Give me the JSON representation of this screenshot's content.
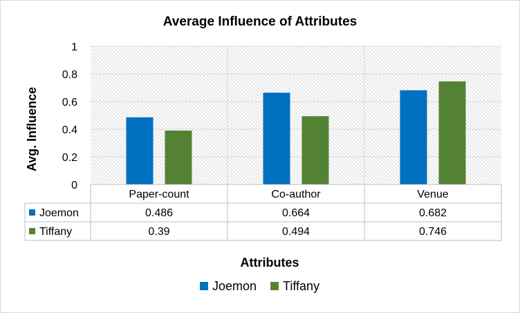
{
  "chart_data": {
    "type": "bar",
    "title": "Average Influence of Attributes",
    "xlabel": "Attributes",
    "ylabel": "Avg. Influence",
    "categories": [
      "Paper-count",
      "Co-author",
      "Venue"
    ],
    "series": [
      {
        "name": "Joemon",
        "values": [
          0.486,
          0.664,
          0.682
        ],
        "color": "#0070c0"
      },
      {
        "name": "Tiffany",
        "values": [
          0.39,
          0.494,
          0.746
        ],
        "color": "#548235"
      }
    ],
    "ylim": [
      0,
      1
    ],
    "yticks": [
      "0",
      "0.2",
      "0.4",
      "0.6",
      "0.8",
      "1"
    ],
    "data_table": {
      "rows": [
        {
          "series": "Joemon",
          "cells": [
            "0.486",
            "0.664",
            "0.682"
          ]
        },
        {
          "series": "Tiffany",
          "cells": [
            "0.39",
            "0.494",
            "0.746"
          ]
        }
      ]
    },
    "grid": true,
    "legend_position": "bottom"
  }
}
